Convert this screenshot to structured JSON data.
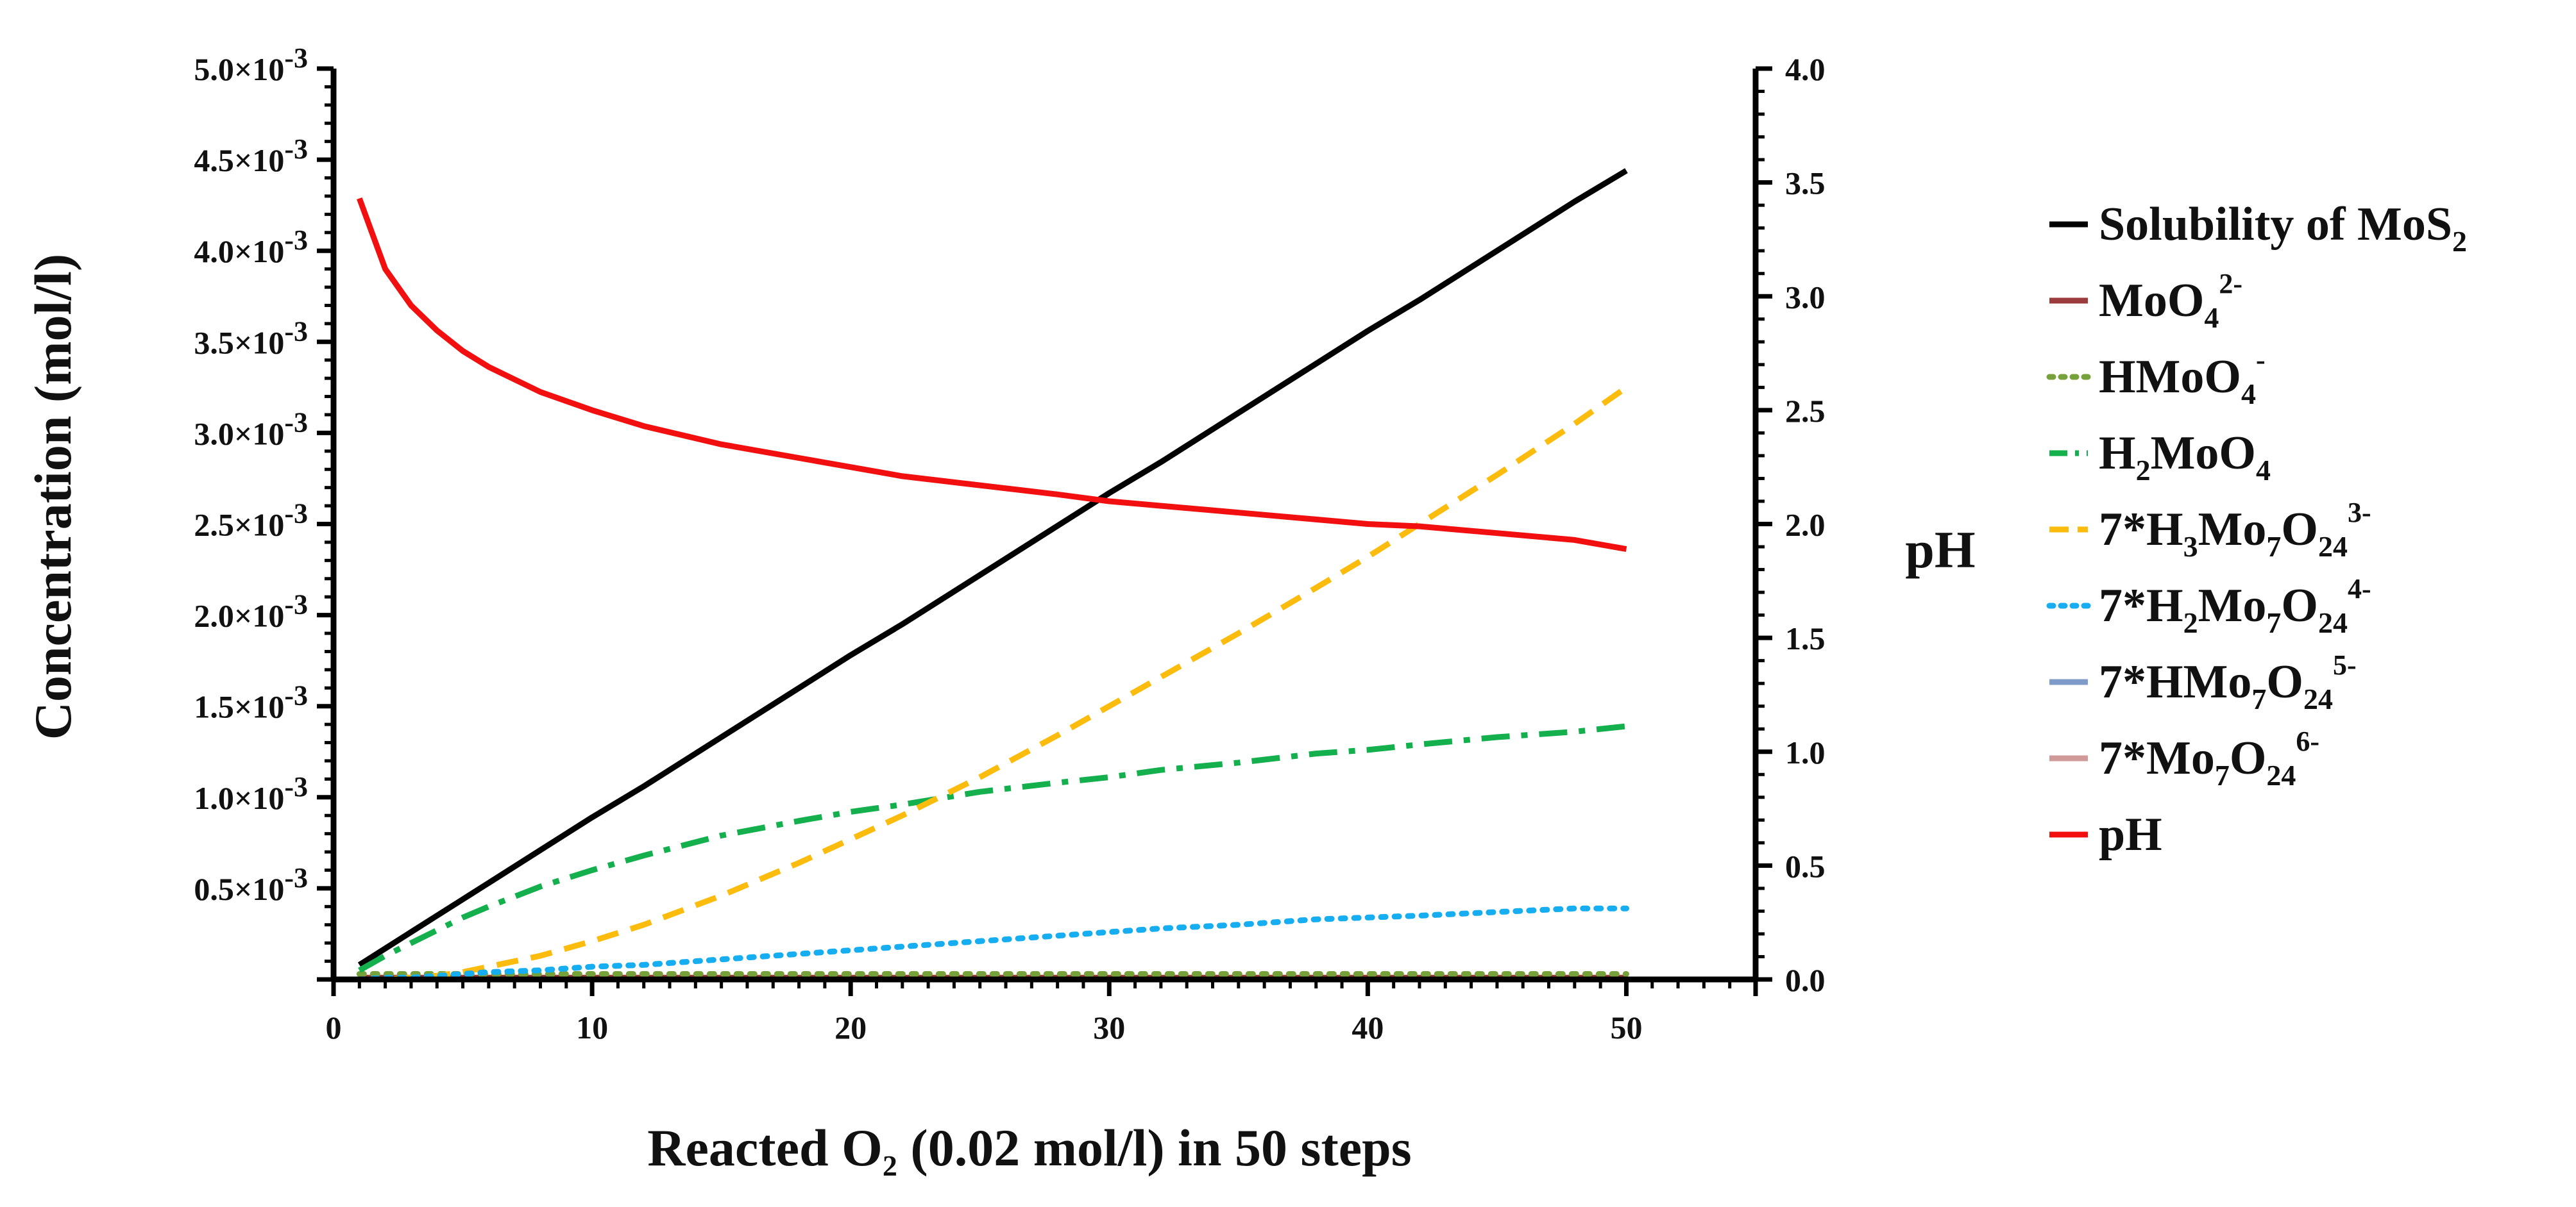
{
  "chart_data": {
    "type": "line",
    "title": "",
    "xlabel": {
      "main": "Reacted O",
      "sub": "2",
      "rest": " (0.02 mol/l) in 50 steps"
    },
    "ylabel_left": "Concentration (mol/l)",
    "ylabel_right": "pH",
    "x_range": [
      0,
      55
    ],
    "x_ticks": [
      0,
      10,
      20,
      30,
      40,
      50
    ],
    "y_left_range": [
      0,
      0.005
    ],
    "y_left_ticks": [
      {
        "mantissa": "0.5",
        "exp": "-3"
      },
      {
        "mantissa": "1.0",
        "exp": "-3"
      },
      {
        "mantissa": "1.5",
        "exp": "-3"
      },
      {
        "mantissa": "2.0",
        "exp": "-3"
      },
      {
        "mantissa": "2.5",
        "exp": "-3"
      },
      {
        "mantissa": "3.0",
        "exp": "-3"
      },
      {
        "mantissa": "3.5",
        "exp": "-3"
      },
      {
        "mantissa": "4.0",
        "exp": "-3"
      },
      {
        "mantissa": "4.5",
        "exp": "-3"
      },
      {
        "mantissa": "5.0",
        "exp": "-3"
      }
    ],
    "y_left_tick_values": [
      0.0005,
      0.001,
      0.0015,
      0.002,
      0.0025,
      0.003,
      0.0035,
      0.004,
      0.0045,
      0.005
    ],
    "y_right_range": [
      0,
      4
    ],
    "y_right_ticks": [
      "0.0",
      "0.5",
      "1.0",
      "1.5",
      "2.0",
      "2.5",
      "3.0",
      "3.5",
      "4.0"
    ],
    "x": [
      1,
      2,
      3,
      4,
      5,
      6,
      8,
      10,
      12,
      15,
      18,
      20,
      22,
      25,
      28,
      30,
      32,
      35,
      38,
      40,
      42,
      45,
      48,
      50
    ],
    "series": [
      {
        "name": "Solubility of MoS2",
        "axis": "left",
        "color": "#000000",
        "dash": "solid",
        "values": [
          8e-05,
          0.00017,
          0.00026,
          0.00035,
          0.00044,
          0.00053,
          0.00071,
          0.00089,
          0.00106,
          0.00133,
          0.0016,
          0.00178,
          0.00195,
          0.00222,
          0.00249,
          0.00267,
          0.00284,
          0.00311,
          0.00338,
          0.00356,
          0.00373,
          0.004,
          0.00427,
          0.00444
        ]
      },
      {
        "name": "MoO4 2-",
        "axis": "left",
        "color": "#9b3b3b",
        "dash": "solid",
        "values": [
          1e-05,
          1e-05,
          1e-05,
          1e-05,
          1e-05,
          1e-05,
          1e-05,
          1e-05,
          1e-05,
          1e-05,
          1e-05,
          1e-05,
          1e-05,
          1e-05,
          1e-05,
          1e-05,
          1e-05,
          1e-05,
          1e-05,
          1e-05,
          1e-05,
          1e-05,
          1e-05,
          1e-05
        ]
      },
      {
        "name": "HMoO4 -",
        "axis": "left",
        "color": "#77a13a",
        "dash": "dotted",
        "values": [
          3e-05,
          3e-05,
          3e-05,
          3e-05,
          3e-05,
          3e-05,
          3e-05,
          3e-05,
          3e-05,
          3e-05,
          3e-05,
          3e-05,
          3e-05,
          3e-05,
          3e-05,
          3e-05,
          3e-05,
          3e-05,
          3e-05,
          3e-05,
          3e-05,
          3e-05,
          3e-05,
          3e-05
        ]
      },
      {
        "name": "H2MoO4",
        "axis": "left",
        "color": "#13b04d",
        "dash": "dashdot",
        "values": [
          5e-05,
          0.00013,
          0.0002,
          0.00027,
          0.00034,
          0.0004,
          0.00051,
          0.0006,
          0.00068,
          0.00079,
          0.00087,
          0.00092,
          0.00096,
          0.00103,
          0.00108,
          0.00111,
          0.00115,
          0.00119,
          0.00124,
          0.00126,
          0.00129,
          0.00133,
          0.00136,
          0.00139
        ]
      },
      {
        "name": "7*H3Mo7O24 3-",
        "axis": "left",
        "color": "#fbbc0e",
        "dash": "dashed",
        "values": [
          0.0,
          0.0,
          1e-05,
          2e-05,
          4e-05,
          7e-05,
          0.00013,
          0.00021,
          0.0003,
          0.00046,
          0.00064,
          0.00077,
          0.0009,
          0.00111,
          0.00134,
          0.0015,
          0.00166,
          0.0019,
          0.00215,
          0.00232,
          0.0025,
          0.00277,
          0.00305,
          0.00325
        ]
      },
      {
        "name": "7*H2Mo7O24 4-",
        "axis": "left",
        "color": "#16aef0",
        "dash": "dotted",
        "values": [
          0.0,
          1e-05,
          1e-05,
          2e-05,
          3e-05,
          4e-05,
          5e-05,
          7e-05,
          8e-05,
          0.00011,
          0.00014,
          0.00016,
          0.00018,
          0.00021,
          0.00024,
          0.00026,
          0.00028,
          0.0003,
          0.00033,
          0.00034,
          0.00035,
          0.00037,
          0.00039,
          0.00039
        ]
      },
      {
        "name": "7*HMo7O24 5-",
        "axis": "left",
        "color": "#7f9cc9",
        "dash": "solid",
        "values": [
          0.0,
          0.0,
          0.0,
          0.0,
          0.0,
          0.0,
          0.0,
          0.0,
          0.0,
          0.0,
          0.0,
          0.0,
          0.0,
          0.0,
          0.0,
          0.0,
          0.0,
          0.0,
          0.0,
          0.0,
          0.0,
          0.0,
          0.0,
          0.0
        ]
      },
      {
        "name": "7*Mo7O24 6-",
        "axis": "left",
        "color": "#d09a9a",
        "dash": "solid",
        "values": [
          0.0,
          0.0,
          0.0,
          0.0,
          0.0,
          0.0,
          0.0,
          0.0,
          0.0,
          0.0,
          0.0,
          0.0,
          0.0,
          0.0,
          0.0,
          0.0,
          0.0,
          0.0,
          0.0,
          0.0,
          0.0,
          0.0,
          0.0,
          0.0
        ]
      },
      {
        "name": "pH",
        "axis": "right",
        "color": "#f20f0f",
        "dash": "solid",
        "values": [
          3.43,
          3.12,
          2.96,
          2.85,
          2.76,
          2.69,
          2.58,
          2.5,
          2.43,
          2.35,
          2.29,
          2.25,
          2.21,
          2.17,
          2.13,
          2.1,
          2.08,
          2.05,
          2.02,
          2.0,
          1.99,
          1.96,
          1.93,
          1.89
        ]
      }
    ],
    "legend": [
      {
        "base": "Solubility of MoS",
        "sub": "2",
        "sup": "",
        "color": "#000000",
        "dash": "solid"
      },
      {
        "base": "MoO",
        "sub": "4",
        "sup": "2-",
        "color": "#9b3b3b",
        "dash": "solid"
      },
      {
        "base": "HMoO",
        "sub": "4",
        "sup": "-",
        "color": "#77a13a",
        "dash": "dotted"
      },
      {
        "pre": "H",
        "presub": "2",
        "base": "MoO",
        "sub": "4",
        "sup": "",
        "color": "#13b04d",
        "dash": "dashdot"
      },
      {
        "pre": "7*H",
        "presub": "3",
        "base": "Mo",
        "midsub": "7",
        "mid": "O",
        "sub": "24",
        "sup": "3-",
        "color": "#fbbc0e",
        "dash": "dashed"
      },
      {
        "pre": "7*H",
        "presub": "2",
        "base": "Mo",
        "midsub": "7",
        "mid": "O",
        "sub": "24",
        "sup": "4-",
        "color": "#16aef0",
        "dash": "dotted"
      },
      {
        "pre": "7*HMo",
        "presub": "7",
        "base": "O",
        "sub": "24",
        "sup": "5-",
        "color": "#7f9cc9",
        "dash": "solid"
      },
      {
        "pre": "7*Mo",
        "presub": "7",
        "base": "O",
        "sub": "24",
        "sup": "6-",
        "color": "#d09a9a",
        "dash": "solid"
      },
      {
        "base": "pH",
        "sub": "",
        "sup": "",
        "color": "#f20f0f",
        "dash": "solid"
      }
    ],
    "legend_position": "right"
  }
}
